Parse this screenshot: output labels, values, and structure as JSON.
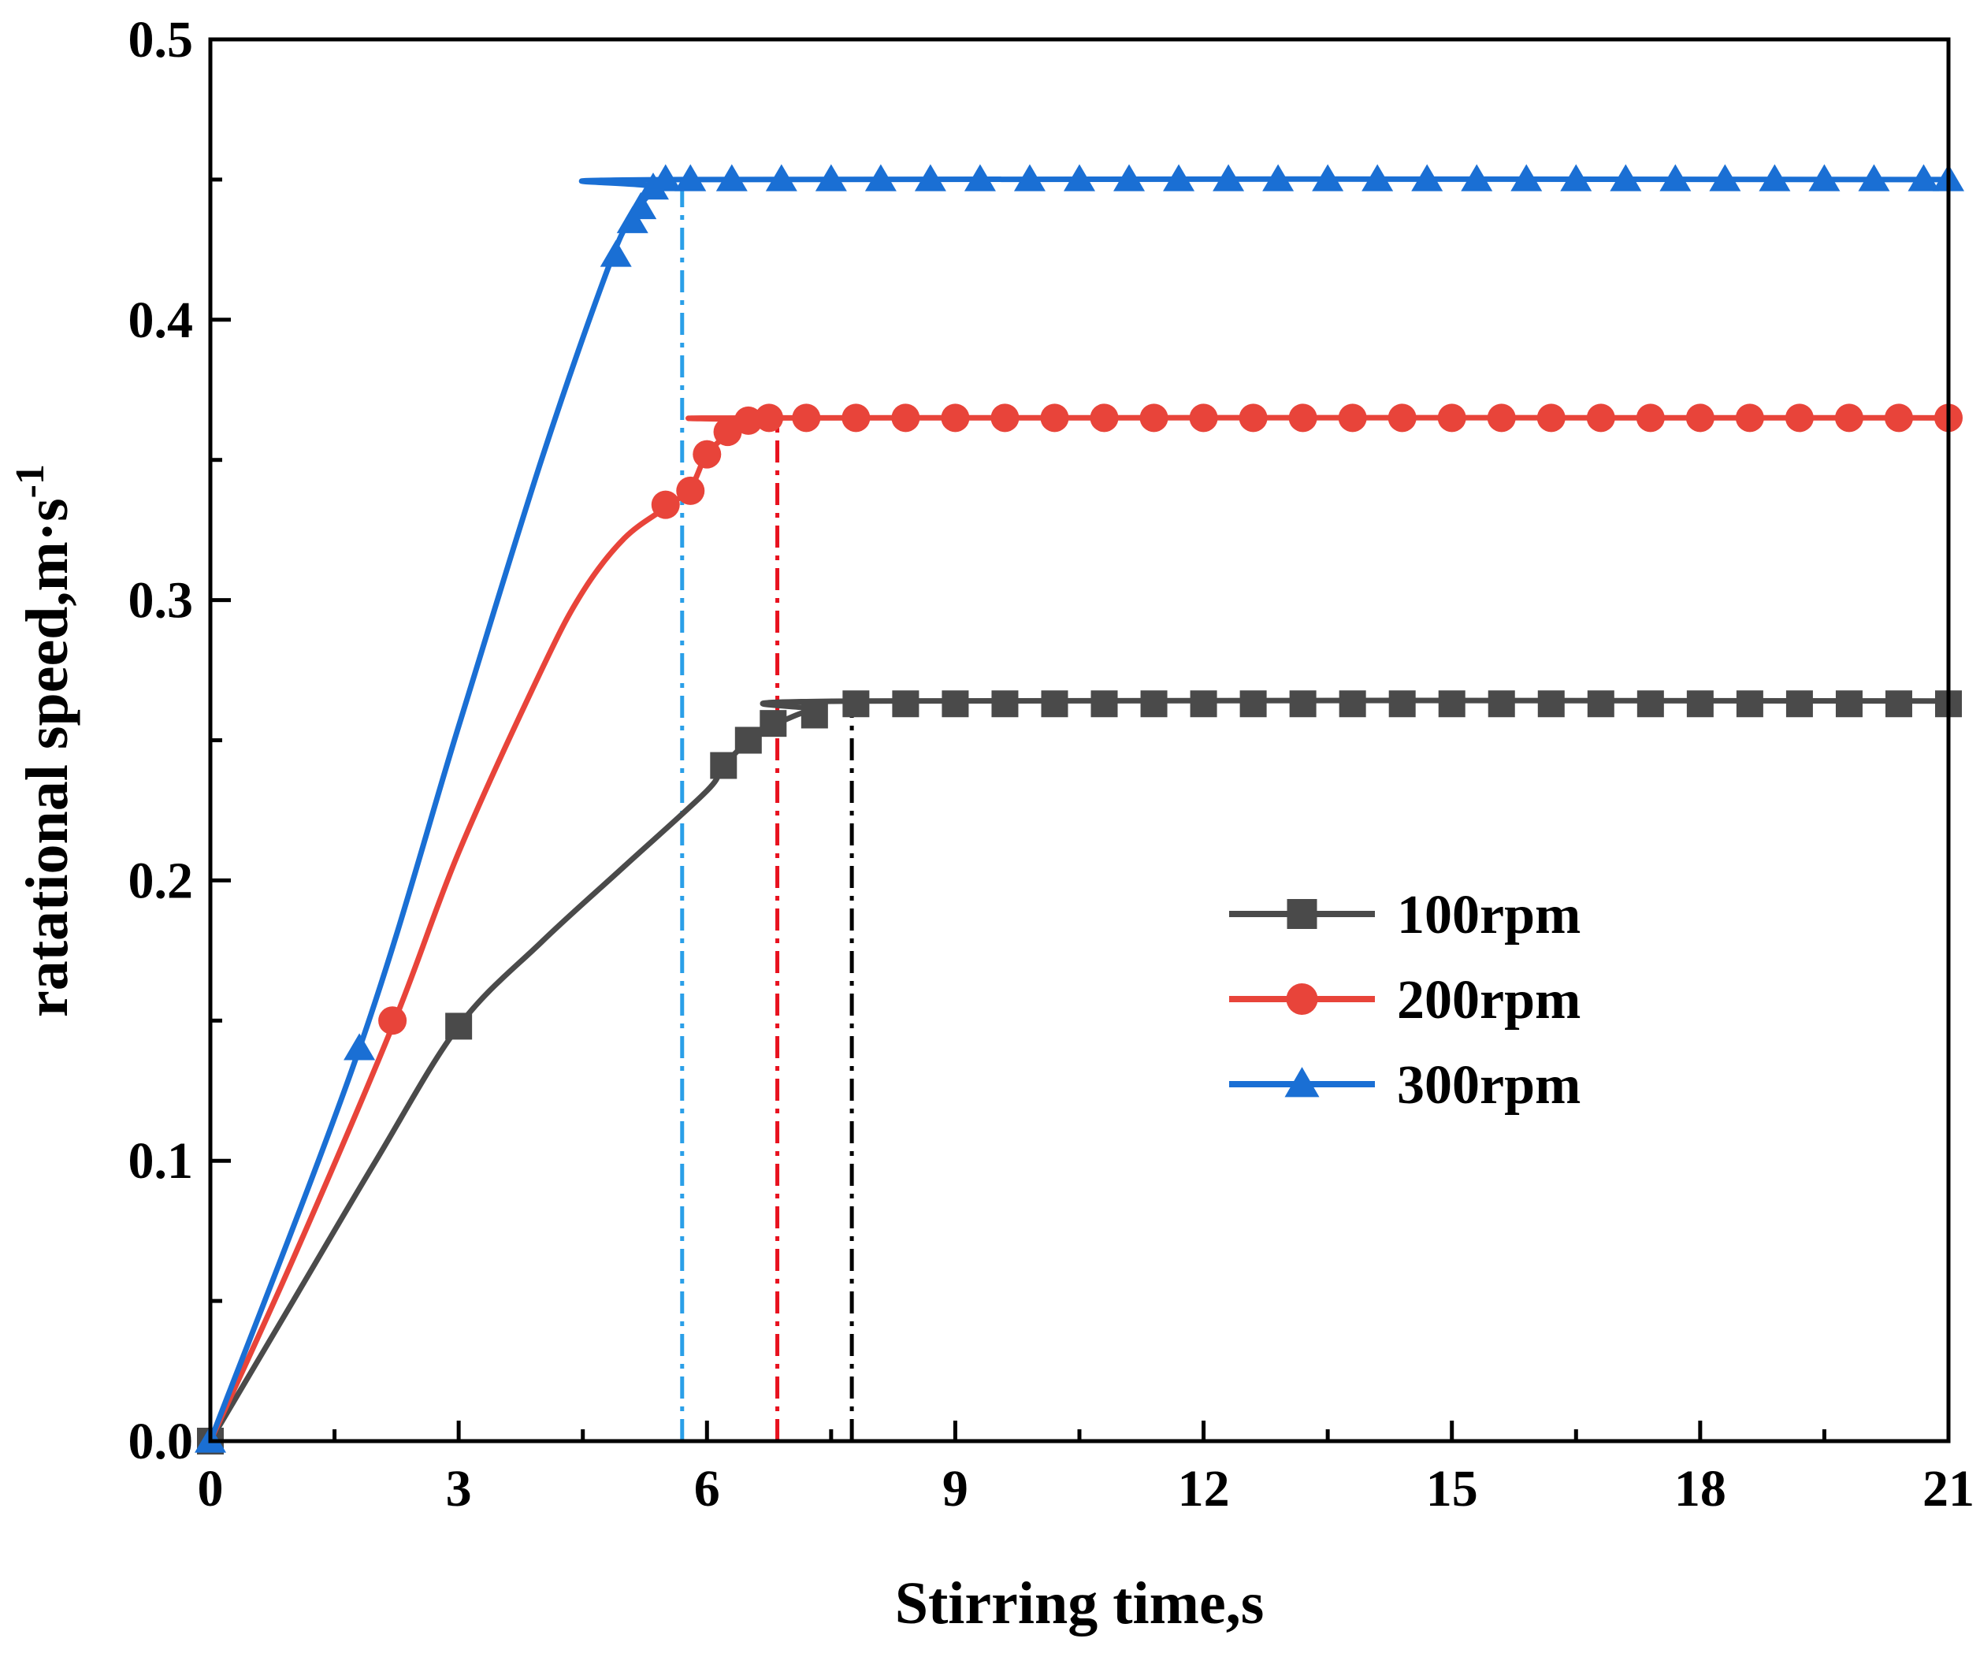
{
  "chart_data": {
    "type": "line",
    "xlabel": "Stirring time,s",
    "ylabel_main": "ratational speed,m·s",
    "ylabel_sup": "-1",
    "xlim": [
      0,
      21
    ],
    "ylim": [
      0,
      0.5
    ],
    "x_ticks": [
      "0",
      "3",
      "6",
      "9",
      "12",
      "15",
      "18",
      "21"
    ],
    "y_ticks": [
      "0.0",
      "0.1",
      "0.2",
      "0.3",
      "0.4",
      "0.5"
    ],
    "grid": false,
    "legend_position": "center-right",
    "series": [
      {
        "name": "100rpm",
        "color": "#4a4a4a",
        "marker": "square",
        "curve": [
          [
            0,
            0
          ],
          [
            1,
            0.05
          ],
          [
            2,
            0.1
          ],
          [
            3,
            0.148
          ],
          [
            4,
            0.178
          ],
          [
            5,
            0.205
          ],
          [
            6,
            0.232
          ],
          [
            6.2,
            0.241
          ],
          [
            6.6,
            0.252
          ],
          [
            7,
            0.258
          ],
          [
            7.3,
            0.261
          ],
          [
            7.8,
            0.264
          ],
          [
            21,
            0.264
          ]
        ],
        "markers": [
          [
            0,
            0
          ],
          [
            3,
            0.148
          ],
          [
            6.2,
            0.241
          ],
          [
            6.5,
            0.25
          ],
          [
            6.8,
            0.256
          ],
          [
            7.3,
            0.259
          ],
          [
            7.8,
            0.263
          ],
          [
            8.4,
            0.263
          ],
          [
            9,
            0.263
          ],
          [
            9.6,
            0.263
          ],
          [
            10.2,
            0.263
          ],
          [
            10.8,
            0.263
          ],
          [
            11.4,
            0.263
          ],
          [
            12,
            0.263
          ],
          [
            12.6,
            0.263
          ],
          [
            13.2,
            0.263
          ],
          [
            13.8,
            0.263
          ],
          [
            14.4,
            0.263
          ],
          [
            15,
            0.263
          ],
          [
            15.6,
            0.263
          ],
          [
            16.2,
            0.263
          ],
          [
            16.8,
            0.263
          ],
          [
            17.4,
            0.263
          ],
          [
            18,
            0.263
          ],
          [
            18.6,
            0.263
          ],
          [
            19.2,
            0.263
          ],
          [
            19.8,
            0.263
          ],
          [
            20.4,
            0.263
          ],
          [
            21,
            0.263
          ]
        ]
      },
      {
        "name": "200rpm",
        "color": "#e8443a",
        "marker": "circle",
        "curve": [
          [
            0,
            0
          ],
          [
            1,
            0.065
          ],
          [
            2.2,
            0.148
          ],
          [
            3,
            0.21
          ],
          [
            4,
            0.275
          ],
          [
            4.5,
            0.303
          ],
          [
            5,
            0.322
          ],
          [
            5.5,
            0.333
          ],
          [
            5.8,
            0.34
          ],
          [
            6,
            0.352
          ],
          [
            6.3,
            0.36
          ],
          [
            6.6,
            0.364
          ],
          [
            6.9,
            0.365
          ],
          [
            21,
            0.365
          ]
        ],
        "markers": [
          [
            2.2,
            0.15
          ],
          [
            5.5,
            0.334
          ],
          [
            5.8,
            0.339
          ],
          [
            6,
            0.352
          ],
          [
            6.25,
            0.36
          ],
          [
            6.5,
            0.364
          ],
          [
            6.75,
            0.365
          ],
          [
            7.2,
            0.365
          ],
          [
            7.8,
            0.365
          ],
          [
            8.4,
            0.365
          ],
          [
            9,
            0.365
          ],
          [
            9.6,
            0.365
          ],
          [
            10.2,
            0.365
          ],
          [
            10.8,
            0.365
          ],
          [
            11.4,
            0.365
          ],
          [
            12,
            0.365
          ],
          [
            12.6,
            0.365
          ],
          [
            13.2,
            0.365
          ],
          [
            13.8,
            0.365
          ],
          [
            14.4,
            0.365
          ],
          [
            15,
            0.365
          ],
          [
            15.6,
            0.365
          ],
          [
            16.2,
            0.365
          ],
          [
            16.8,
            0.365
          ],
          [
            17.4,
            0.365
          ],
          [
            18,
            0.365
          ],
          [
            18.6,
            0.365
          ],
          [
            19.2,
            0.365
          ],
          [
            19.8,
            0.365
          ],
          [
            20.4,
            0.365
          ],
          [
            21,
            0.365
          ]
        ]
      },
      {
        "name": "300rpm",
        "color": "#1a6fd4",
        "marker": "triangle",
        "curve": [
          [
            0,
            0
          ],
          [
            1.8,
            0.14
          ],
          [
            3,
            0.255
          ],
          [
            4,
            0.35
          ],
          [
            4.8,
            0.418
          ],
          [
            5.1,
            0.437
          ],
          [
            5.4,
            0.447
          ],
          [
            5.7,
            0.45
          ],
          [
            21,
            0.45
          ]
        ],
        "markers": [
          [
            0,
            0
          ],
          [
            1.8,
            0.14
          ],
          [
            4.9,
            0.423
          ],
          [
            5.1,
            0.435
          ],
          [
            5.2,
            0.44
          ],
          [
            5.35,
            0.447
          ],
          [
            5.5,
            0.45
          ],
          [
            5.8,
            0.45
          ],
          [
            6.3,
            0.45
          ],
          [
            6.9,
            0.45
          ],
          [
            7.5,
            0.45
          ],
          [
            8.1,
            0.45
          ],
          [
            8.7,
            0.45
          ],
          [
            9.3,
            0.45
          ],
          [
            9.9,
            0.45
          ],
          [
            10.5,
            0.45
          ],
          [
            11.1,
            0.45
          ],
          [
            11.7,
            0.45
          ],
          [
            12.3,
            0.45
          ],
          [
            12.9,
            0.45
          ],
          [
            13.5,
            0.45
          ],
          [
            14.1,
            0.45
          ],
          [
            14.7,
            0.45
          ],
          [
            15.3,
            0.45
          ],
          [
            15.9,
            0.45
          ],
          [
            16.5,
            0.45
          ],
          [
            17.1,
            0.45
          ],
          [
            17.7,
            0.45
          ],
          [
            18.3,
            0.45
          ],
          [
            18.9,
            0.45
          ],
          [
            19.5,
            0.45
          ],
          [
            20.1,
            0.45
          ],
          [
            20.7,
            0.45
          ],
          [
            21,
            0.45
          ]
        ]
      }
    ],
    "reference_lines": [
      {
        "x": 5.7,
        "y_top": 0.45,
        "color": "#2a9fe8",
        "style": "dash-dot"
      },
      {
        "x": 6.85,
        "y_top": 0.365,
        "color": "#e8111e",
        "style": "dash-dot"
      },
      {
        "x": 7.75,
        "y_top": 0.263,
        "color": "#000000",
        "style": "dash-dot"
      }
    ]
  }
}
